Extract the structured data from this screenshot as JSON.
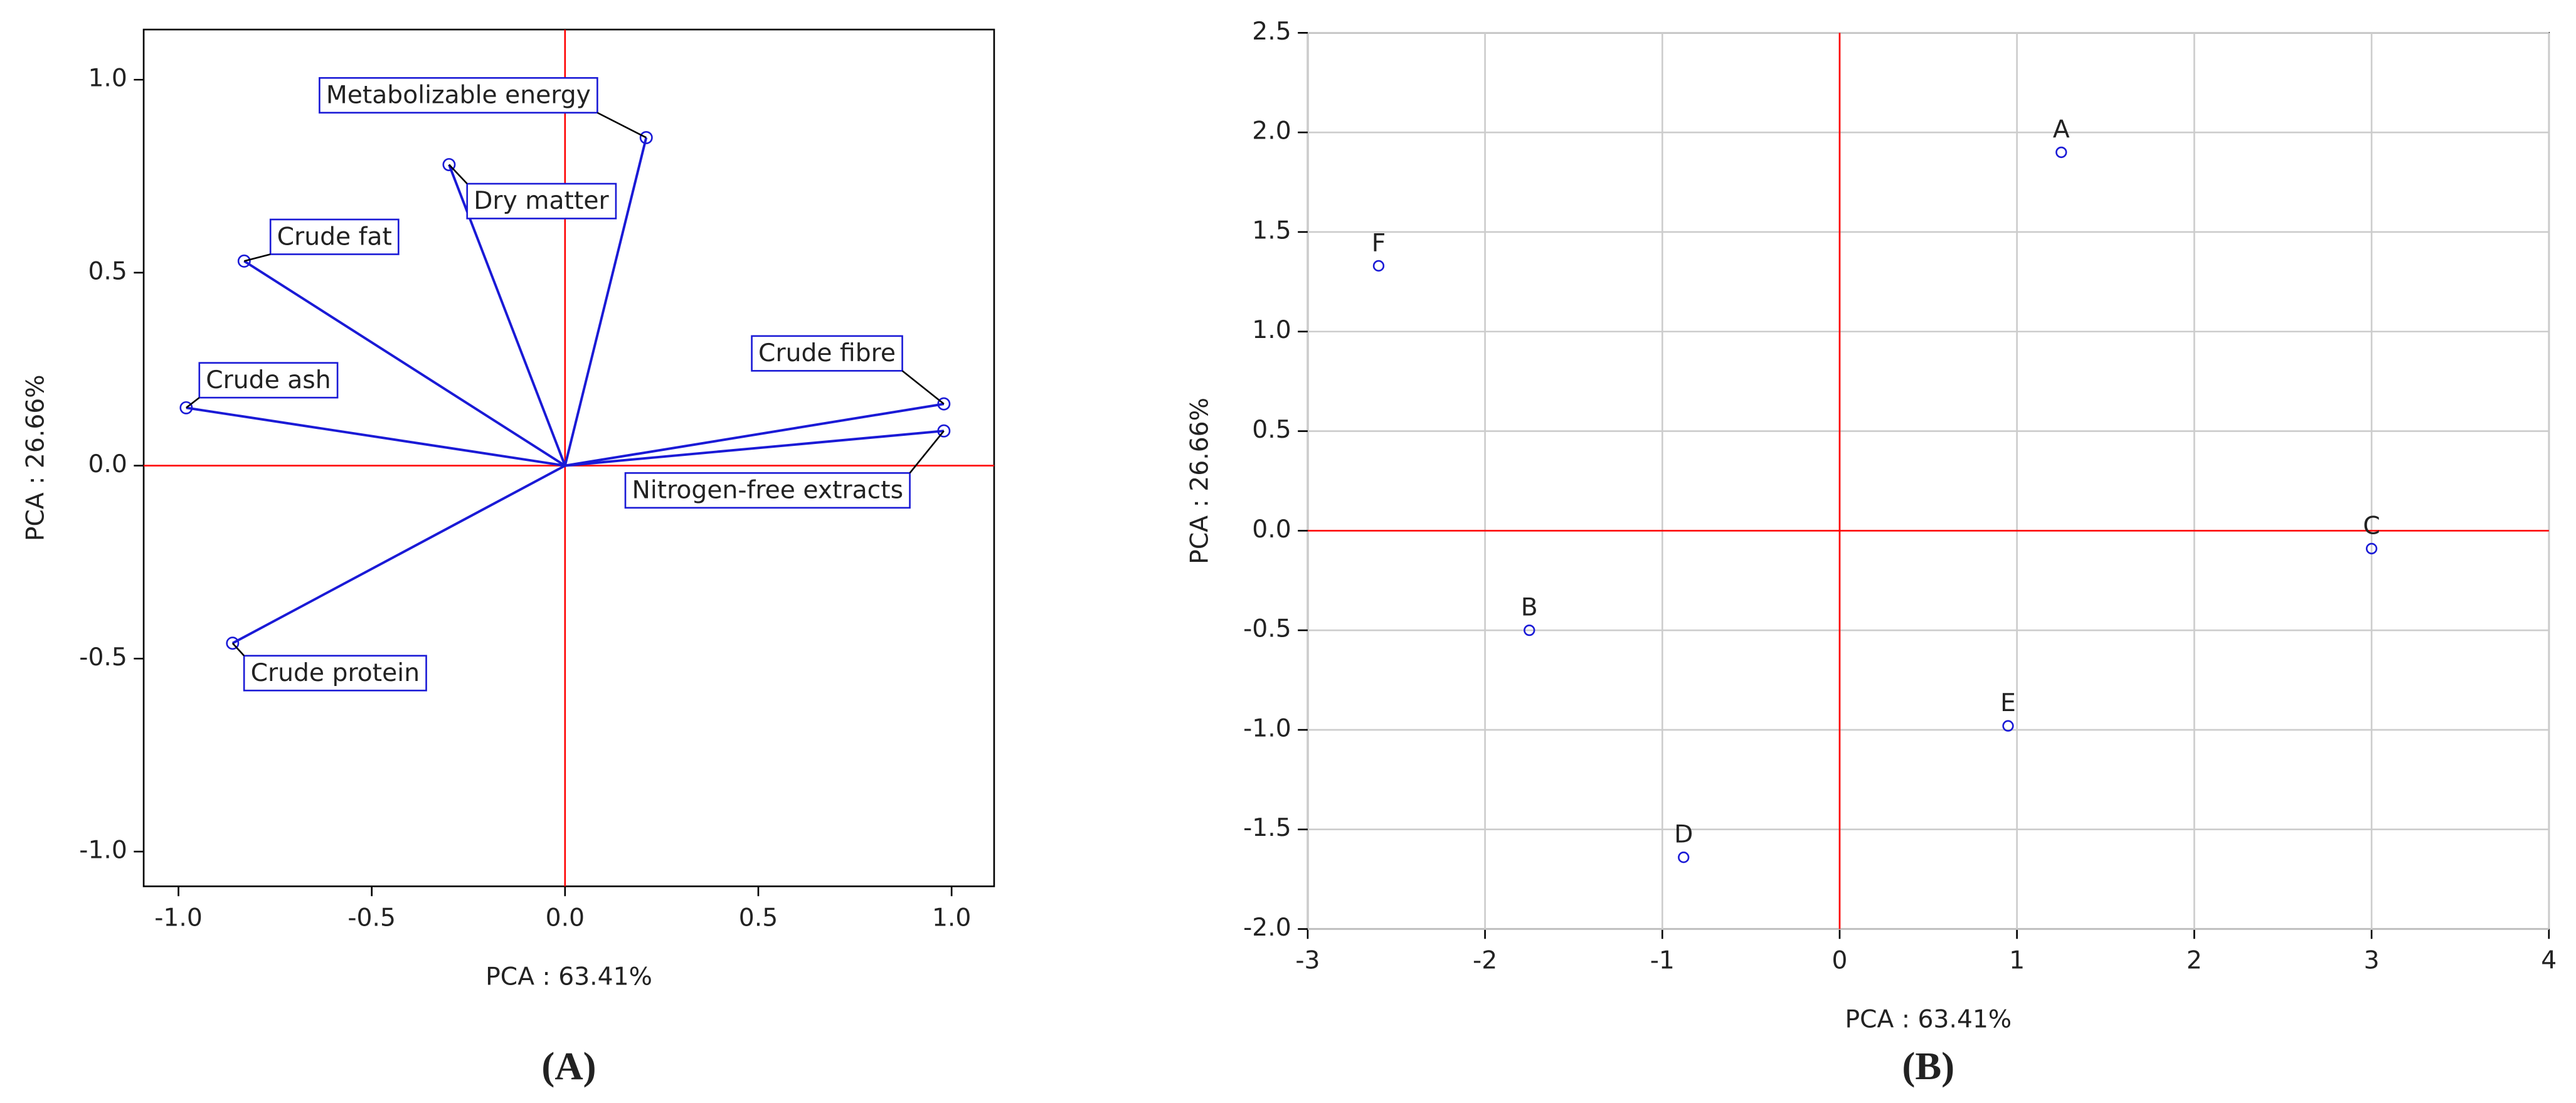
{
  "chart_data": [
    {
      "type": "loadings",
      "caption": "(A)",
      "xlabel": "PCA : 63.41%",
      "ylabel": "PCA : 26.66%",
      "labels": [
        "Metabolizable energy",
        "Dry matter",
        "Crude fat",
        "Crude ash",
        "Crude fibre",
        "Nitrogen-free extracts",
        "Crude protein"
      ],
      "x": [
        0.21,
        -0.3,
        -0.83,
        -0.98,
        0.98,
        0.98,
        -0.86
      ],
      "y": [
        0.85,
        0.78,
        0.53,
        0.15,
        0.16,
        0.09,
        -0.46
      ],
      "xlim": [
        -1.09,
        1.11
      ],
      "ylim": [
        -1.09,
        1.13
      ],
      "xticks": [
        {
          "value": -1,
          "label": "-1.0"
        },
        -0.5,
        {
          "value": 0,
          "label": "0.0"
        },
        0.5,
        {
          "value": 1,
          "label": "1.0"
        }
      ],
      "yticks": [
        {
          "value": -1,
          "label": "-1.0"
        },
        -0.5,
        {
          "value": 0,
          "label": "0.0"
        },
        0.5,
        {
          "value": 1,
          "label": "1.0"
        }
      ],
      "grid": false,
      "color": "#1a1ad6",
      "ref_color": "#ff0000"
    },
    {
      "type": "scores",
      "caption": "(B)",
      "xlabel": "PCA : 63.41%",
      "ylabel": "PCA : 26.66%",
      "labels": [
        "A",
        "F",
        "C",
        "B",
        "E",
        "D"
      ],
      "x": [
        1.25,
        -2.6,
        3.0,
        -1.75,
        0.95,
        -0.88
      ],
      "y": [
        1.9,
        1.33,
        -0.09,
        -0.5,
        -0.98,
        -1.64
      ],
      "xlim": [
        -3,
        4
      ],
      "ylim": [
        -2,
        2.5
      ],
      "xticks": [
        -3,
        -2,
        -1,
        0,
        1,
        2,
        3,
        4
      ],
      "yticks": [
        {
          "value": -2,
          "label": "-2.0"
        },
        -1.5,
        {
          "value": -1,
          "label": "-1.0"
        },
        -0.5,
        {
          "value": 0,
          "label": "0.0"
        },
        0.5,
        {
          "value": 1,
          "label": "1.0"
        },
        1.5,
        {
          "value": 2,
          "label": "2.0"
        },
        2.5
      ],
      "grid": true,
      "color": "#1a1ad6",
      "ref_color": "#ff0000"
    }
  ]
}
